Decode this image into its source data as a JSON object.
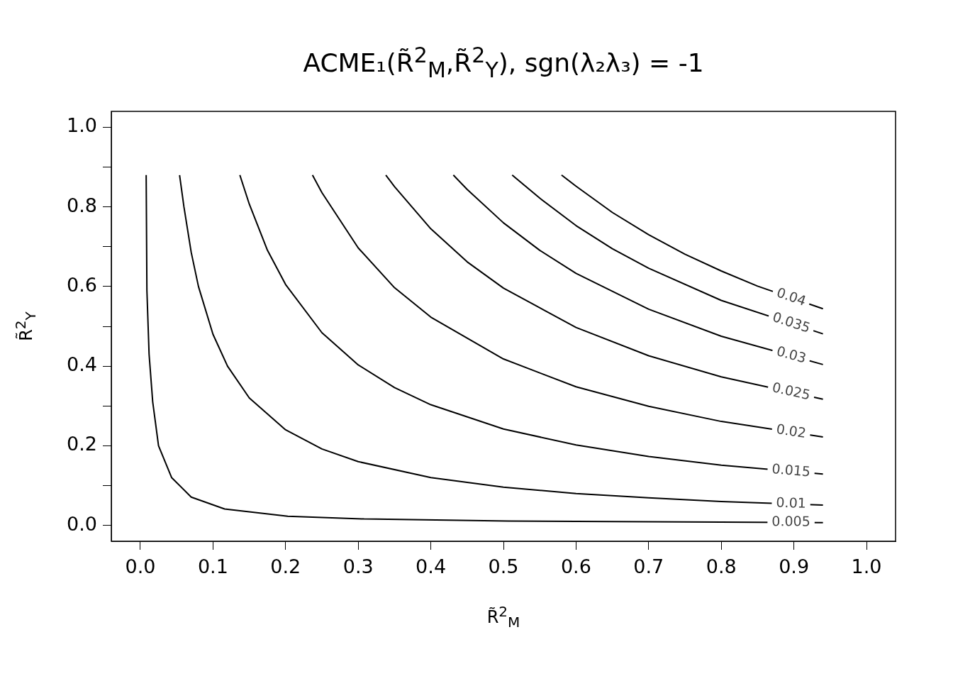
{
  "chart_data": {
    "type": "line",
    "title": "ACME₁(R̃$^{2}$$_{M}$,R̃$^{2}$$_{Y}$), sgn(λ₂λ₃) = -1",
    "xlabel": "R̃$^{2}$$_{M}$",
    "ylabel": "R̃$^{2}$$_{Y}$",
    "xlim": [
      -0.04,
      1.04
    ],
    "ylim": [
      -0.04,
      1.04
    ],
    "xticks": [
      {
        "value": 0,
        "label": "0.0"
      },
      0.1,
      0.2,
      0.3,
      0.4,
      0.5,
      0.6,
      0.7,
      0.8,
      0.9,
      {
        "value": 1,
        "label": "1.0"
      }
    ],
    "yticks": [
      {
        "value": 0,
        "label": "0.0"
      },
      {
        "value": 0.1,
        "label": null
      },
      0.2,
      {
        "value": 0.3,
        "label": null
      },
      0.4,
      {
        "value": 0.5,
        "label": null
      },
      0.6,
      {
        "value": 0.7,
        "label": null
      },
      0.8,
      {
        "value": 0.9,
        "label": null
      },
      {
        "value": 1,
        "label": "1.0"
      }
    ],
    "grid": false,
    "marker": "none",
    "line_style": "solid",
    "series": [
      {
        "name": "0.005",
        "color": "#000000",
        "x": [
          0.008,
          0.009,
          0.012,
          0.017,
          0.025,
          0.043,
          0.07,
          0.116,
          0.203,
          0.308,
          0.506,
          0.7,
          0.94
        ],
        "values": [
          0.88,
          0.59,
          0.43,
          0.31,
          0.2,
          0.12,
          0.071,
          0.041,
          0.023,
          0.016,
          0.011,
          0.009,
          0.007
        ]
      },
      {
        "name": "0.01",
        "color": "#000000",
        "x": [
          0.054,
          0.06,
          0.07,
          0.08,
          0.1,
          0.12,
          0.15,
          0.2,
          0.25,
          0.3,
          0.4,
          0.5,
          0.6,
          0.7,
          0.8,
          0.94
        ],
        "values": [
          0.88,
          0.8,
          0.686,
          0.6,
          0.48,
          0.4,
          0.32,
          0.24,
          0.192,
          0.16,
          0.12,
          0.096,
          0.08,
          0.069,
          0.06,
          0.051
        ]
      },
      {
        "name": "0.015",
        "color": "#000000",
        "x": [
          0.137,
          0.15,
          0.175,
          0.2,
          0.25,
          0.3,
          0.35,
          0.4,
          0.5,
          0.6,
          0.7,
          0.8,
          0.94
        ],
        "values": [
          0.88,
          0.807,
          0.691,
          0.605,
          0.484,
          0.403,
          0.346,
          0.303,
          0.242,
          0.202,
          0.173,
          0.151,
          0.129
        ]
      },
      {
        "name": "0.02",
        "color": "#000000",
        "x": [
          0.237,
          0.25,
          0.3,
          0.35,
          0.4,
          0.5,
          0.6,
          0.7,
          0.8,
          0.94
        ],
        "values": [
          0.88,
          0.836,
          0.697,
          0.597,
          0.523,
          0.418,
          0.348,
          0.299,
          0.261,
          0.222
        ]
      },
      {
        "name": "0.025",
        "color": "#000000",
        "x": [
          0.338,
          0.35,
          0.4,
          0.45,
          0.5,
          0.6,
          0.7,
          0.8,
          0.94
        ],
        "values": [
          0.88,
          0.851,
          0.745,
          0.662,
          0.596,
          0.497,
          0.426,
          0.373,
          0.317
        ]
      },
      {
        "name": "0.03",
        "color": "#000000",
        "x": [
          0.431,
          0.45,
          0.5,
          0.55,
          0.6,
          0.7,
          0.8,
          0.94
        ],
        "values": [
          0.88,
          0.844,
          0.76,
          0.691,
          0.633,
          0.543,
          0.475,
          0.404
        ]
      },
      {
        "name": "0.035",
        "color": "#000000",
        "x": [
          0.512,
          0.55,
          0.6,
          0.65,
          0.7,
          0.8,
          0.94
        ],
        "values": [
          0.88,
          0.822,
          0.753,
          0.695,
          0.646,
          0.565,
          0.481
        ]
      },
      {
        "name": "0.04",
        "color": "#000000",
        "x": [
          0.58,
          0.6,
          0.65,
          0.7,
          0.75,
          0.8,
          0.85,
          0.94
        ],
        "values": [
          0.88,
          0.852,
          0.786,
          0.73,
          0.681,
          0.639,
          0.601,
          0.544
        ]
      }
    ]
  }
}
